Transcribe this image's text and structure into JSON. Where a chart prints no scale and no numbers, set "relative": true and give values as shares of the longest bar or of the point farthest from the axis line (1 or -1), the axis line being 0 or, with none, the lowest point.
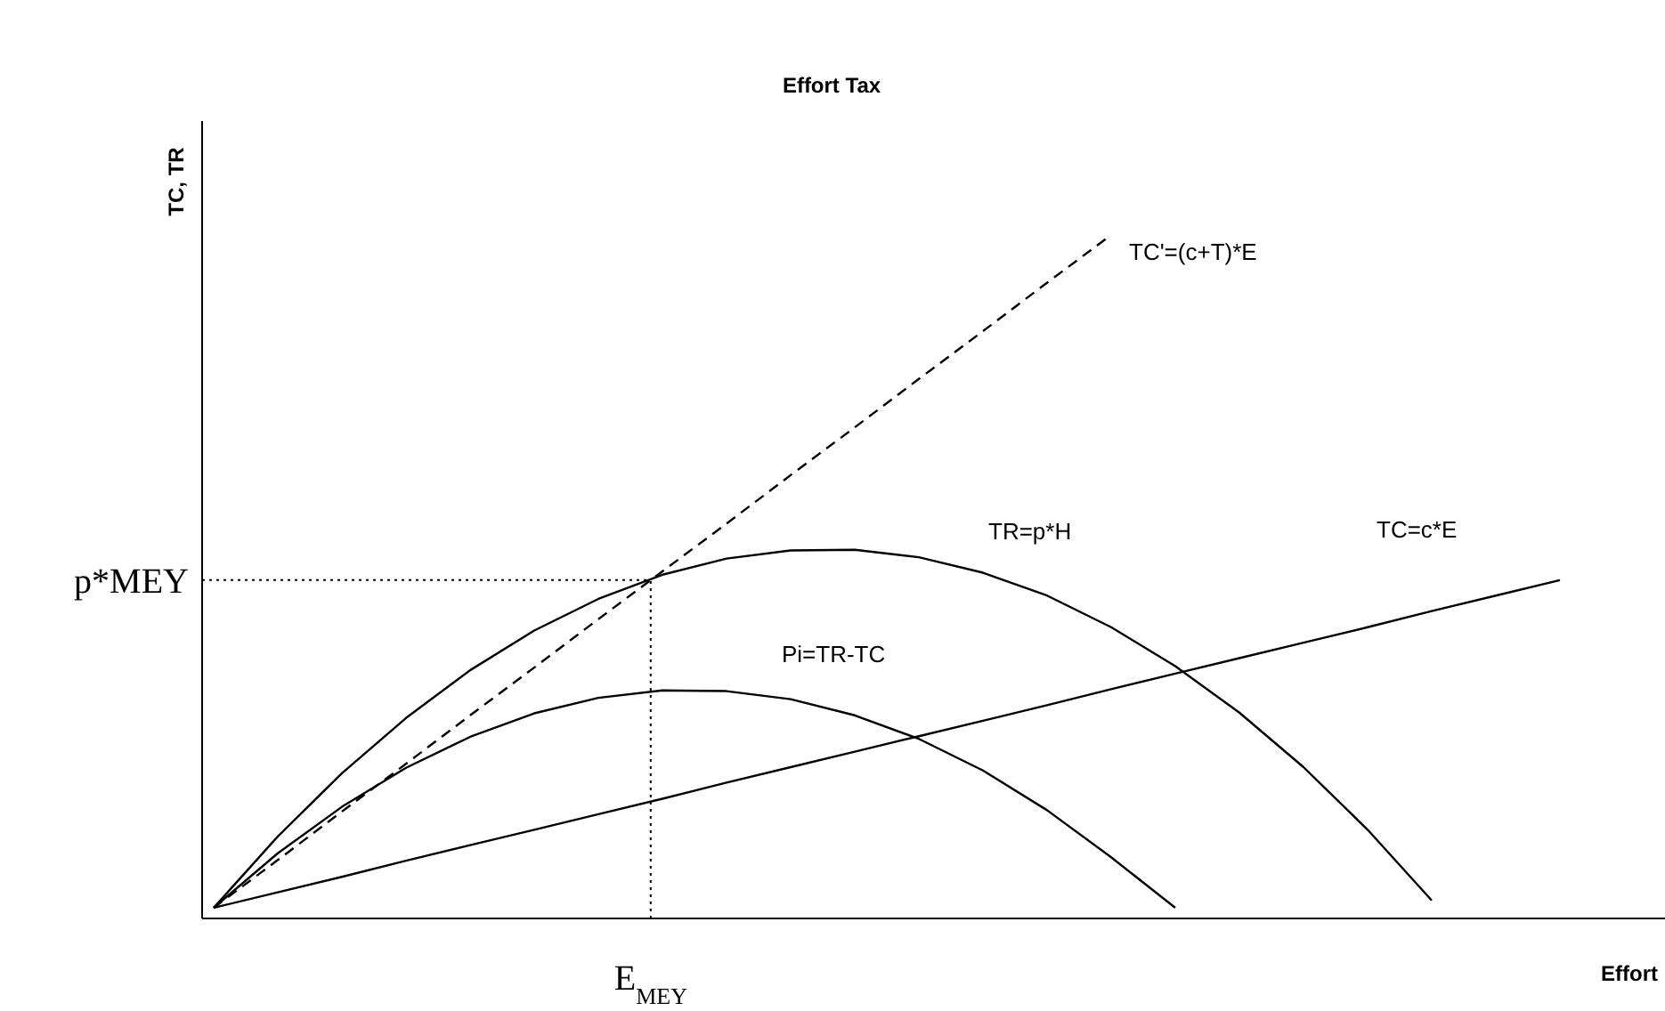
{
  "chart_data": {
    "type": "line",
    "title": "Effort Tax",
    "xlabel": "Effort",
    "ylabel": "TC, TR",
    "relative": true,
    "categories": [
      null,
      null,
      null,
      null,
      null,
      null,
      null,
      null,
      null,
      null,
      null,
      null,
      null,
      null,
      null,
      null,
      null,
      null,
      null,
      null,
      null,
      null
    ],
    "series": [
      {
        "name": "TC=c*E",
        "color": "#000000",
        "line_style": "solid",
        "values": [
          0,
          0.023,
          0.046,
          0.07,
          0.093,
          0.116,
          0.139,
          0.162,
          0.186,
          0.209,
          0.232,
          0.255,
          0.278,
          0.301,
          0.325,
          0.348,
          0.371,
          0.394,
          0.417,
          0.441,
          0.464,
          0.487
        ]
      },
      {
        "name": "TC'=(c+T)*E",
        "color": "#000000",
        "line_style": "dashed",
        "values": [
          0,
          0.071,
          0.143,
          0.214,
          0.286,
          0.357,
          0.429,
          0.5,
          0.571,
          0.643,
          0.714,
          0.786,
          0.857,
          0.929,
          1,
          null,
          null,
          null,
          null,
          null,
          null,
          null
        ]
      },
      {
        "name": "TR=p*H",
        "color": "#000000",
        "line_style": "solid",
        "values": [
          0,
          0.106,
          0.2,
          0.282,
          0.353,
          0.412,
          0.459,
          0.495,
          0.519,
          0.531,
          0.532,
          0.521,
          0.498,
          0.464,
          0.417,
          0.359,
          0.29,
          0.209,
          0.116,
          0.011,
          null,
          null
        ]
      },
      {
        "name": "Pi=TR-TC",
        "color": "#000000",
        "line_style": "solid",
        "values": [
          0,
          0.081,
          0.15,
          0.208,
          0.254,
          0.289,
          0.312,
          0.323,
          0.322,
          0.31,
          0.286,
          0.251,
          0.204,
          0.145,
          0.075,
          0,
          null,
          null,
          null,
          null,
          null,
          null
        ]
      }
    ],
    "ref_lines": [
      {
        "axis": "y",
        "value": 0.487,
        "label": "p*MEY",
        "line_style": "dotted"
      }
    ],
    "annotations": [
      "E$_{MEY}$"
    ]
  }
}
